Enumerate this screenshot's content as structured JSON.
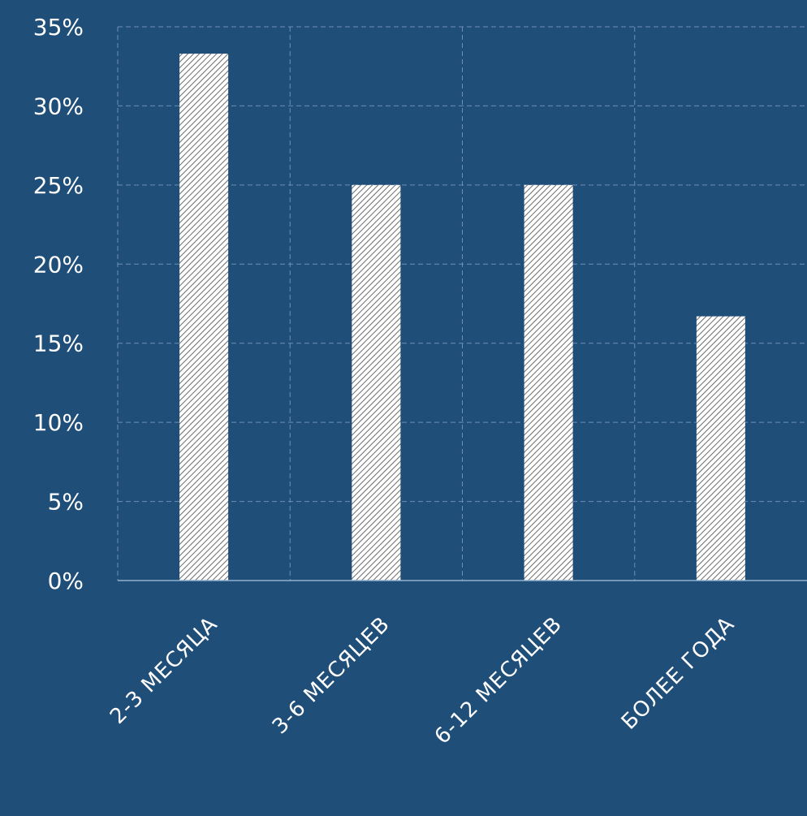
{
  "colors": {
    "background": "#1F4E79",
    "bar_fill": "#FFFFFF",
    "bar_hatch": "#6B6B6B",
    "grid": "#6F8FB3",
    "axis": "#8FB0D0",
    "text": "#FFFFFF"
  },
  "chart_data": {
    "type": "bar",
    "categories": [
      "2-3 МЕСЯЦА",
      "3-6 МЕСЯЦЕВ",
      "6-12 МЕСЯЦЕВ",
      "БОЛЕЕ ГОДА"
    ],
    "series": [
      {
        "values": [
          33.3,
          25.0,
          25.0,
          16.7
        ]
      }
    ],
    "ylim": [
      0,
      35
    ],
    "yticks": [
      0,
      5,
      10,
      15,
      20,
      25,
      30,
      35
    ],
    "ytick_labels": [
      "0%",
      "5%",
      "10%",
      "15%",
      "20%",
      "25%",
      "30%",
      "35%"
    ],
    "grid": true,
    "grid_style": "dashed",
    "bar_pattern": "diagonal-hatch",
    "legend": false
  }
}
